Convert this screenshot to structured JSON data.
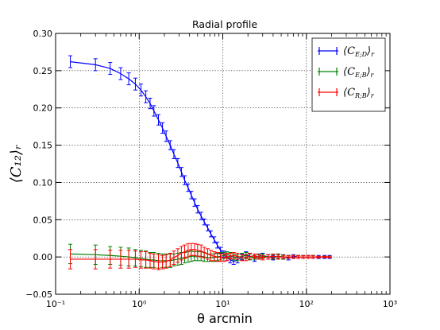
{
  "chart_data": {
    "type": "line",
    "title": "Radial profile",
    "xlabel": "θ arcmin",
    "ylabel": "⟨C₁₂⟩ᵣ",
    "xscale": "log",
    "xlim": [
      0.1,
      1000
    ],
    "ylim": [
      -0.05,
      0.3
    ],
    "x_ticks": [
      "10⁻¹",
      "10⁰",
      "10¹",
      "10²",
      "10³"
    ],
    "y_ticks": [
      "−0.05",
      "0.00",
      "0.05",
      "0.10",
      "0.15",
      "0.20",
      "0.25",
      "0.30"
    ],
    "grid": true,
    "legend_position": "top-right",
    "series": [
      {
        "name": "⟨C_{E;D}⟩_r",
        "legend_main": "⟨C",
        "legend_sub": "E;D",
        "legend_end": "⟩",
        "legend_r": "r",
        "color": "#0000ff",
        "points": [
          [
            0.15,
            0.262,
            0.008
          ],
          [
            0.3,
            0.258,
            0.008
          ],
          [
            0.45,
            0.253,
            0.008
          ],
          [
            0.6,
            0.246,
            0.008
          ],
          [
            0.75,
            0.239,
            0.008
          ],
          [
            0.9,
            0.232,
            0.008
          ],
          [
            1.05,
            0.224,
            0.008
          ],
          [
            1.2,
            0.215,
            0.008
          ],
          [
            1.35,
            0.206,
            0.007
          ],
          [
            1.5,
            0.196,
            0.007
          ],
          [
            1.7,
            0.184,
            0.007
          ],
          [
            1.9,
            0.173,
            0.007
          ],
          [
            2.1,
            0.162,
            0.007
          ],
          [
            2.35,
            0.15,
            0.006
          ],
          [
            2.6,
            0.138,
            0.006
          ],
          [
            2.9,
            0.126,
            0.006
          ],
          [
            3.2,
            0.114,
            0.006
          ],
          [
            3.5,
            0.103,
            0.006
          ],
          [
            3.85,
            0.093,
            0.005
          ],
          [
            4.2,
            0.083,
            0.005
          ],
          [
            4.6,
            0.073,
            0.005
          ],
          [
            5.0,
            0.064,
            0.005
          ],
          [
            5.5,
            0.055,
            0.005
          ],
          [
            6.0,
            0.047,
            0.004
          ],
          [
            6.6,
            0.039,
            0.004
          ],
          [
            7.2,
            0.031,
            0.004
          ],
          [
            7.9,
            0.023,
            0.004
          ],
          [
            8.6,
            0.016,
            0.004
          ],
          [
            9.4,
            0.009,
            0.004
          ],
          [
            10.3,
            0.004,
            0.004
          ],
          [
            11.2,
            -0.001,
            0.004
          ],
          [
            12.3,
            -0.004,
            0.004
          ],
          [
            13.5,
            -0.006,
            0.004
          ],
          [
            15.0,
            -0.004,
            0.004
          ],
          [
            17.0,
            0.0,
            0.004
          ],
          [
            19.0,
            0.003,
            0.004
          ],
          [
            21.0,
            0.001,
            0.004
          ],
          [
            24.0,
            -0.002,
            0.004
          ],
          [
            27.0,
            0.001,
            0.003
          ],
          [
            30.0,
            0.002,
            0.003
          ],
          [
            35.0,
            0.0,
            0.003
          ],
          [
            40.0,
            -0.001,
            0.003
          ],
          [
            46.0,
            0.001,
            0.003
          ],
          [
            53.0,
            0.0,
            0.003
          ],
          [
            61.0,
            -0.001,
            0.003
          ],
          [
            70.0,
            0.001,
            0.002
          ],
          [
            80.0,
            0.0,
            0.002
          ],
          [
            92.0,
            0.0,
            0.002
          ],
          [
            105.0,
            0.0,
            0.002
          ],
          [
            120.0,
            0.0,
            0.002
          ],
          [
            140.0,
            0.0,
            0.002
          ],
          [
            165.0,
            0.0,
            0.002
          ],
          [
            190.0,
            0.0,
            0.002
          ]
        ]
      },
      {
        "name": "⟨C_{E;B}⟩_r",
        "legend_main": "⟨C",
        "legend_sub": "E;B",
        "legend_end": "⟩",
        "legend_r": "r",
        "color": "#008000",
        "points": [
          [
            0.15,
            0.004,
            0.013
          ],
          [
            0.3,
            0.003,
            0.013
          ],
          [
            0.45,
            0.002,
            0.012
          ],
          [
            0.6,
            0.001,
            0.012
          ],
          [
            0.75,
            0.0,
            0.012
          ],
          [
            0.9,
            -0.001,
            0.011
          ],
          [
            1.05,
            -0.002,
            0.011
          ],
          [
            1.2,
            -0.003,
            0.011
          ],
          [
            1.35,
            -0.004,
            0.01
          ],
          [
            1.5,
            -0.004,
            0.01
          ],
          [
            1.7,
            -0.005,
            0.01
          ],
          [
            1.9,
            -0.005,
            0.009
          ],
          [
            2.1,
            -0.005,
            0.009
          ],
          [
            2.35,
            -0.005,
            0.009
          ],
          [
            2.6,
            -0.004,
            0.008
          ],
          [
            2.9,
            -0.003,
            0.008
          ],
          [
            3.2,
            -0.002,
            0.008
          ],
          [
            3.5,
            -0.001,
            0.007
          ],
          [
            3.85,
            0.0,
            0.007
          ],
          [
            4.2,
            0.001,
            0.007
          ],
          [
            4.6,
            0.001,
            0.006
          ],
          [
            5.0,
            0.001,
            0.006
          ],
          [
            5.5,
            0.001,
            0.006
          ],
          [
            6.0,
            0.0,
            0.006
          ],
          [
            6.6,
            -0.001,
            0.005
          ],
          [
            7.2,
            -0.001,
            0.005
          ],
          [
            7.9,
            -0.001,
            0.005
          ],
          [
            8.6,
            0.0,
            0.005
          ],
          [
            9.4,
            0.001,
            0.005
          ],
          [
            10.3,
            0.002,
            0.004
          ],
          [
            11.2,
            0.003,
            0.004
          ],
          [
            12.3,
            0.002,
            0.004
          ],
          [
            13.5,
            0.0,
            0.004
          ],
          [
            15.0,
            -0.001,
            0.004
          ],
          [
            17.0,
            0.001,
            0.004
          ],
          [
            19.0,
            0.002,
            0.004
          ],
          [
            21.0,
            0.0,
            0.004
          ],
          [
            24.0,
            -0.001,
            0.003
          ],
          [
            27.0,
            0.001,
            0.003
          ],
          [
            30.0,
            0.001,
            0.003
          ],
          [
            35.0,
            0.0,
            0.003
          ],
          [
            40.0,
            0.0,
            0.003
          ],
          [
            46.0,
            0.001,
            0.003
          ],
          [
            53.0,
            0.0,
            0.003
          ],
          [
            61.0,
            0.0,
            0.002
          ],
          [
            70.0,
            0.0,
            0.002
          ],
          [
            80.0,
            0.0,
            0.002
          ],
          [
            92.0,
            0.0,
            0.002
          ],
          [
            105.0,
            0.0,
            0.002
          ],
          [
            120.0,
            0.0,
            0.002
          ],
          [
            140.0,
            0.0,
            0.001
          ],
          [
            165.0,
            0.0,
            0.001
          ],
          [
            190.0,
            0.0,
            0.001
          ]
        ]
      },
      {
        "name": "⟨C_{R;B}⟩_r",
        "legend_main": "⟨C",
        "legend_sub": "R;B",
        "legend_end": "⟩",
        "legend_r": "r",
        "color": "#ff0000",
        "points": [
          [
            0.15,
            -0.003,
            0.013
          ],
          [
            0.3,
            -0.003,
            0.013
          ],
          [
            0.45,
            -0.003,
            0.012
          ],
          [
            0.6,
            -0.003,
            0.012
          ],
          [
            0.75,
            -0.003,
            0.012
          ],
          [
            0.9,
            -0.003,
            0.011
          ],
          [
            1.05,
            -0.004,
            0.011
          ],
          [
            1.2,
            -0.004,
            0.011
          ],
          [
            1.35,
            -0.005,
            0.01
          ],
          [
            1.5,
            -0.006,
            0.01
          ],
          [
            1.7,
            -0.007,
            0.01
          ],
          [
            1.9,
            -0.007,
            0.009
          ],
          [
            2.1,
            -0.006,
            0.009
          ],
          [
            2.35,
            -0.004,
            0.009
          ],
          [
            2.6,
            -0.001,
            0.009
          ],
          [
            2.9,
            0.002,
            0.009
          ],
          [
            3.2,
            0.005,
            0.009
          ],
          [
            3.5,
            0.007,
            0.009
          ],
          [
            3.85,
            0.009,
            0.009
          ],
          [
            4.2,
            0.01,
            0.008
          ],
          [
            4.6,
            0.01,
            0.008
          ],
          [
            5.0,
            0.009,
            0.008
          ],
          [
            5.5,
            0.008,
            0.008
          ],
          [
            6.0,
            0.006,
            0.007
          ],
          [
            6.6,
            0.004,
            0.007
          ],
          [
            7.2,
            0.002,
            0.007
          ],
          [
            7.9,
            0.001,
            0.006
          ],
          [
            8.6,
            0.0,
            0.006
          ],
          [
            9.4,
            -0.001,
            0.005
          ],
          [
            10.3,
            -0.001,
            0.005
          ],
          [
            11.2,
            0.0,
            0.005
          ],
          [
            12.3,
            0.001,
            0.004
          ],
          [
            13.5,
            0.002,
            0.004
          ],
          [
            15.0,
            0.001,
            0.004
          ],
          [
            17.0,
            -0.001,
            0.004
          ],
          [
            19.0,
            -0.001,
            0.004
          ],
          [
            21.0,
            0.001,
            0.004
          ],
          [
            24.0,
            0.001,
            0.003
          ],
          [
            27.0,
            0.0,
            0.003
          ],
          [
            30.0,
            -0.001,
            0.003
          ],
          [
            35.0,
            0.0,
            0.003
          ],
          [
            40.0,
            0.001,
            0.003
          ],
          [
            46.0,
            0.0,
            0.003
          ],
          [
            53.0,
            0.0,
            0.002
          ],
          [
            61.0,
            0.0,
            0.002
          ],
          [
            70.0,
            0.0,
            0.002
          ],
          [
            80.0,
            0.0,
            0.002
          ],
          [
            92.0,
            0.0,
            0.002
          ],
          [
            105.0,
            0.0,
            0.002
          ],
          [
            120.0,
            0.0,
            0.002
          ],
          [
            140.0,
            0.0,
            0.001
          ],
          [
            165.0,
            0.0,
            0.001
          ],
          [
            190.0,
            0.0,
            0.001
          ]
        ]
      }
    ]
  }
}
